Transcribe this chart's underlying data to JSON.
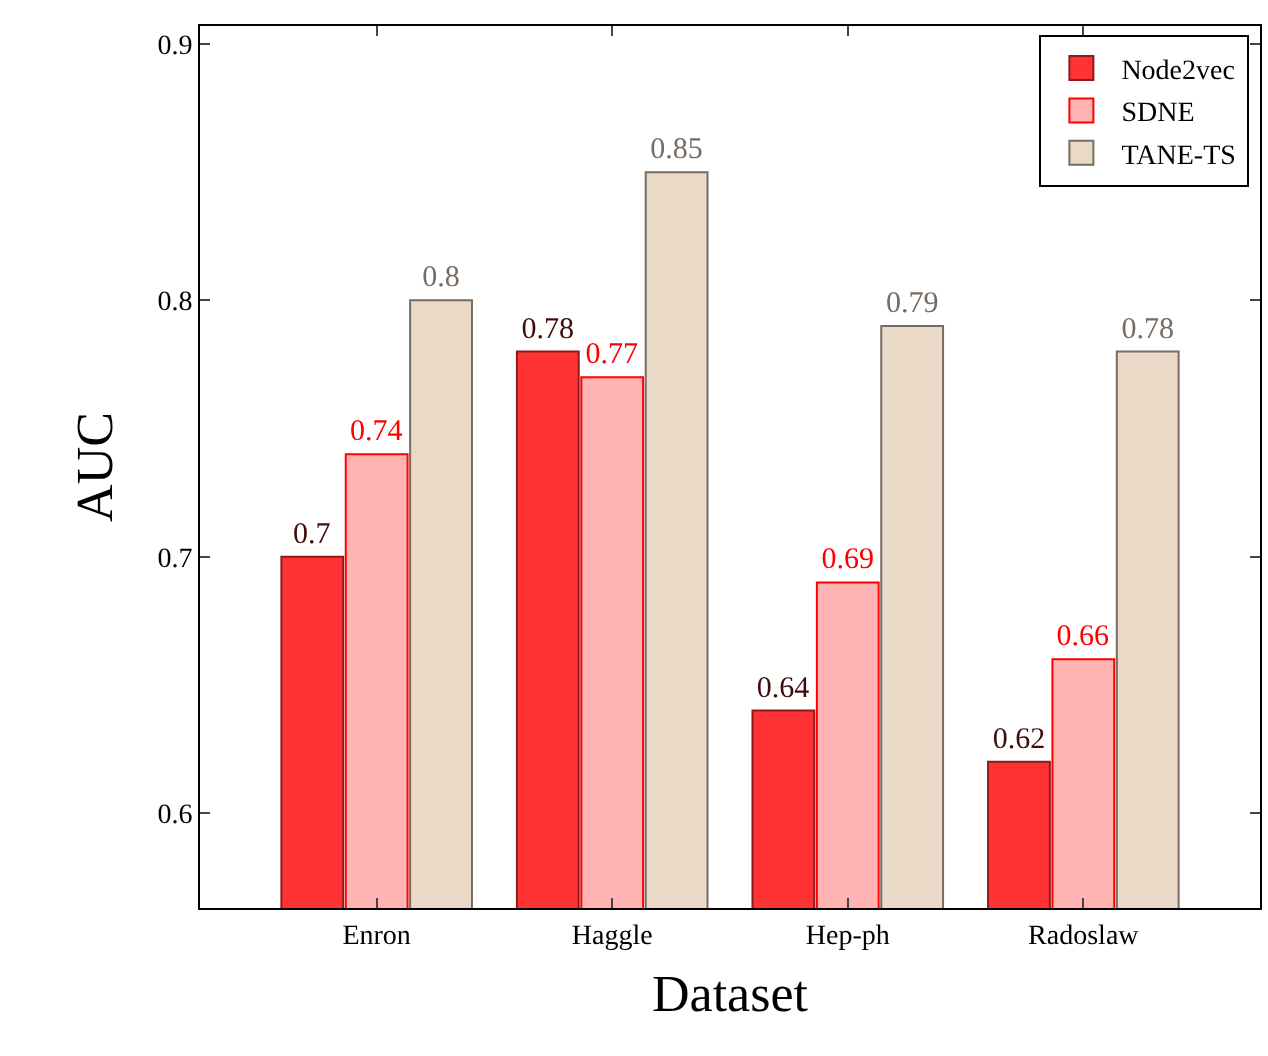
{
  "chart_data": {
    "type": "bar",
    "xlabel": "Dataset",
    "ylabel": "AUC",
    "categories": [
      "Enron",
      "Haggle",
      "Hep-ph",
      "Radoslaw"
    ],
    "series": [
      {
        "name": "Node2vec",
        "color": "#ff3333",
        "values": [
          0.7,
          0.78,
          0.64,
          0.62
        ]
      },
      {
        "name": "SDNE",
        "color": "#ffb3b3",
        "values": [
          0.74,
          0.77,
          0.69,
          0.66
        ]
      },
      {
        "name": "TANE-TS",
        "color": "#ead9c6",
        "values": [
          0.8,
          0.85,
          0.79,
          0.78
        ]
      }
    ],
    "ylim": [
      0.563,
      0.907
    ],
    "yticks": [
      0.6,
      0.7,
      0.8,
      0.9
    ],
    "data_labels": true,
    "legend": "top right"
  }
}
